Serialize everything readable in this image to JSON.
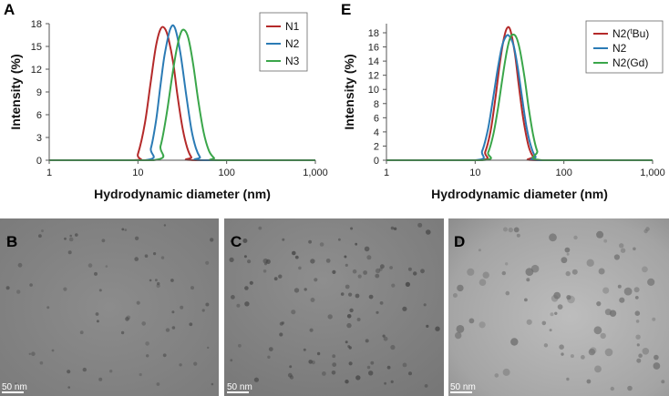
{
  "chart_data": [
    {
      "panel": "A",
      "type": "line",
      "xlabel": "Hydrodynamic diameter (nm)",
      "ylabel": "Intensity (%)",
      "xscale": "log",
      "xlim": [
        1,
        1000
      ],
      "ylim": [
        0,
        18
      ],
      "xticks": [
        "1",
        "10",
        "100",
        "1,000"
      ],
      "yticks": [
        "0",
        "3",
        "6",
        "9",
        "12",
        "15",
        "18"
      ],
      "grid": false,
      "legend_position": "top-right",
      "series": [
        {
          "name": "N1",
          "color": "#b42a2a",
          "x": [
            1,
            9,
            10,
            12,
            14,
            16,
            18,
            20,
            22,
            25,
            28,
            32,
            36,
            40,
            45,
            1000
          ],
          "y": [
            0,
            0,
            0.8,
            4.9,
            10.5,
            15.1,
            17.3,
            17.4,
            16.1,
            12.8,
            8.4,
            4.1,
            1.6,
            0.4,
            0,
            0
          ]
        },
        {
          "name": "N2",
          "color": "#2b7bb5",
          "x": [
            1,
            12,
            14,
            16,
            18,
            20,
            23,
            26,
            30,
            35,
            40,
            45,
            50,
            55,
            1000
          ],
          "y": [
            0,
            0,
            1.6,
            5.2,
            10.0,
            13.9,
            17.2,
            17.5,
            14.2,
            8.6,
            4.1,
            1.6,
            0.4,
            0,
            0
          ]
        },
        {
          "name": "N3",
          "color": "#3aa64a",
          "x": [
            1,
            15,
            18,
            21,
            24,
            27,
            30,
            33,
            37,
            42,
            48,
            55,
            63,
            72,
            80,
            1000
          ],
          "y": [
            0,
            0,
            1.9,
            6.0,
            10.6,
            14.3,
            16.6,
            17.2,
            16.1,
            12.6,
            7.8,
            3.7,
            1.3,
            0.3,
            0,
            0
          ]
        }
      ]
    },
    {
      "panel": "E",
      "type": "line",
      "xlabel": "Hydrodynamic diameter (nm)",
      "ylabel": "Intensity (%)",
      "xscale": "log",
      "xlim": [
        1,
        1000
      ],
      "ylim": [
        0,
        18
      ],
      "xticks": [
        "1",
        "10",
        "100",
        "1,000"
      ],
      "yticks": [
        "0",
        "2",
        "4",
        "6",
        "8",
        "10",
        "12",
        "14",
        "16",
        "18"
      ],
      "grid": false,
      "legend_position": "top-right",
      "series": [
        {
          "name": "N2(tBu)",
          "color": "#b42a2a",
          "x": [
            1,
            11,
            13,
            15,
            17,
            19,
            21,
            23,
            25,
            28,
            31,
            35,
            40,
            45,
            50,
            1000
          ],
          "y": [
            0,
            0,
            1.2,
            4.3,
            9.0,
            13.8,
            17.1,
            18.7,
            18.3,
            15.1,
            10.6,
            5.7,
            2.0,
            0.5,
            0,
            0
          ]
        },
        {
          "name": "N2",
          "color": "#2b7bb5",
          "x": [
            1,
            10,
            12,
            14,
            16,
            18,
            20,
            22,
            24,
            27,
            30,
            34,
            38,
            43,
            48,
            55,
            1000
          ],
          "y": [
            0,
            0,
            1.3,
            4.5,
            8.9,
            13.0,
            16.0,
            17.4,
            17.6,
            16.3,
            13.3,
            8.6,
            4.6,
            1.8,
            0.5,
            0,
            0
          ]
        },
        {
          "name": "N2(Gd)",
          "color": "#3aa64a",
          "x": [
            1,
            12,
            14,
            16,
            18,
            20,
            22,
            24,
            26,
            29,
            32,
            36,
            40,
            45,
            50,
            58,
            1000
          ],
          "y": [
            0,
            0,
            1.1,
            3.6,
            7.2,
            11.0,
            14.4,
            16.7,
            17.7,
            17.4,
            15.5,
            11.7,
            7.5,
            3.6,
            1.3,
            0,
            0
          ]
        }
      ]
    }
  ],
  "panels": {
    "A": "A",
    "B": "B",
    "C": "C",
    "D": "D",
    "E": "E"
  },
  "legend_E": {
    "tbu_prefix": "N2(",
    "tbu_superscript": "t",
    "tbu_suffix": "Bu)"
  },
  "micrographs": {
    "B": {
      "scale_bar": "50 nm"
    },
    "C": {
      "scale_bar": "50 nm"
    },
    "D": {
      "scale_bar": "50 nm"
    }
  }
}
